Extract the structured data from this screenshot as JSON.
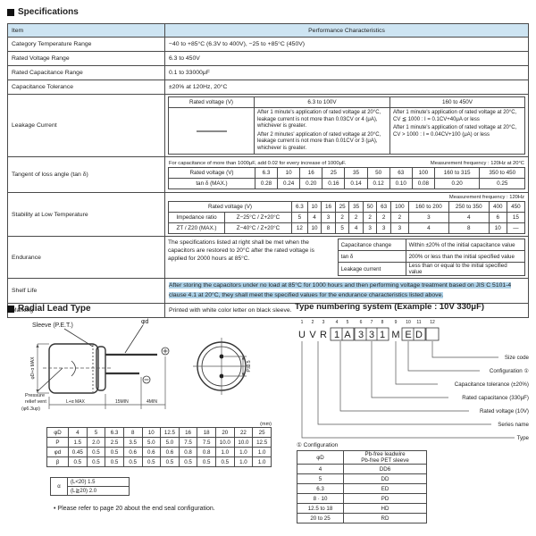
{
  "titles": {
    "specifications": "Specifications",
    "radial": "Radial Lead Type",
    "type_numbering": "Type numbering system (Example : 10V 330μF)"
  },
  "spec": {
    "header": {
      "item": "Item",
      "performance": "Performance Characteristics"
    },
    "rows": [
      {
        "label": "Category Temperature Range",
        "value": "−40 to +85°C (6.3V to 400V),  −25 to +85°C (450V)"
      },
      {
        "label": "Rated Voltage Range",
        "value": "6.3 to 450V"
      },
      {
        "label": "Rated Capacitance Range",
        "value": "0.1 to 33000μF"
      },
      {
        "label": "Capacitance Tolerance",
        "value": "±20% at 120Hz, 20°C"
      }
    ],
    "leakage": {
      "label": "Leakage Current",
      "col_header": "Rated voltage (V)",
      "range_low": "6.3 to 100V",
      "range_high": "160 to 450V",
      "low_p1": "After 1 minute's application of rated voltage at 20°C, leakage current is not more than 0.03CV or 4 (μA), whichever is greater.",
      "low_p2": "After 2 minutes' application of rated voltage at 20°C, leakage current is not more than 0.01CV or 3 (μA), whichever is greater.",
      "high_p1": "After 1 minute's application of rated voltage at 20°C, CV ≦ 1000 : I = 0.1CV+40μA or less",
      "high_p2": "After 1 minute's application of rated voltage at 20°C, CV > 1000 : I = 0.04CV+100 (μA) or less"
    },
    "tan_delta": {
      "label": "Tangent of loss angle (tan δ)",
      "note": "For capacitance of more than 1000μF, add 0.02 for every increase of 1000μF.",
      "freq_note": "Measurement frequency : 120Hz at 20°C",
      "voltage_label": "Rated voltage (V)",
      "voltages": [
        "6.3",
        "10",
        "16",
        "25",
        "35",
        "50",
        "63",
        "100",
        "160 to 315",
        "350 to 450"
      ],
      "max_label": "tan δ (MAX.)",
      "max_values": [
        "0.28",
        "0.24",
        "0.20",
        "0.16",
        "0.14",
        "0.12",
        "0.10",
        "0.08",
        "0.20",
        "0.25"
      ]
    },
    "stability": {
      "label": "Stability at Low Temperature",
      "freq_note": "Measurement frequency : 120Hz",
      "voltage_label": "Rated voltage (V)",
      "voltages": [
        "6.3",
        "10",
        "16",
        "25",
        "35",
        "50",
        "63",
        "100",
        "160 to 200",
        "250 to 350",
        "400",
        "450"
      ],
      "row_label_1": "Impedance ratio",
      "row_label_2": "ZT / Z20 (MAX.)",
      "z25_label": "Z−25°C / Z+20°C",
      "z25_values": [
        "5",
        "4",
        "3",
        "2",
        "2",
        "2",
        "2",
        "2",
        "3",
        "4",
        "6",
        "15"
      ],
      "z40_label": "Z−40°C / Z+20°C",
      "z40_values": [
        "12",
        "10",
        "8",
        "5",
        "4",
        "3",
        "3",
        "3",
        "4",
        "8",
        "10",
        "—"
      ]
    },
    "endurance": {
      "label": "Endurance",
      "text": "The specifications listed at right shall be met when the capacitors are restored to 20°C after the rated voltage is applied for 2000 hours at 85°C.",
      "criteria": [
        {
          "item": "Capacitance change",
          "value": "Within ±20% of the initial capacitance value"
        },
        {
          "item": "tan δ",
          "value": "200% or less than the initial specified value"
        },
        {
          "item": "Leakage current",
          "value": "Less than or equal to the initial specified value"
        }
      ]
    },
    "shelf_life": {
      "label": "Shelf Life",
      "text": "After storing the capacitors under no load at 85°C for 1000 hours and then performing voltage treatment based on JIS C 5101-4 clause 4.1 at 20°C, they shall meet the specified values for the endurance characteristics listed above."
    },
    "marking": {
      "label": "Marking",
      "value": "Printed with white color letter on black sleeve."
    }
  },
  "radial": {
    "drawing": {
      "sleeve_label": "Sleeve (P.E.T.)",
      "lead_dia_label": "φd",
      "vent_label_1": "Pressure",
      "vent_label_2": "relief vent",
      "vent_label_3": "(φ6.3up)",
      "body_dia_label": "φD+α MAX",
      "length_label": "L+α MAX",
      "lead_min_label": "15MIN",
      "tip_min_label": "4MIN",
      "pitch_label": "P±0.5"
    },
    "dim_table": {
      "unit": "(mm)",
      "rows": [
        {
          "label": "φD",
          "values": [
            "4",
            "5",
            "6.3",
            "8",
            "10",
            "12.5",
            "16",
            "18",
            "20",
            "22",
            "25"
          ]
        },
        {
          "label": "P",
          "values": [
            "1.5",
            "2.0",
            "2.5",
            "3.5",
            "5.0",
            "5.0",
            "7.5",
            "7.5",
            "10.0",
            "10.0",
            "12.5"
          ]
        },
        {
          "label": "φd",
          "values": [
            "0.45",
            "0.5",
            "0.5",
            "0.6",
            "0.6",
            "0.6",
            "0.8",
            "0.8",
            "1.0",
            "1.0",
            "1.0"
          ]
        },
        {
          "label": "β",
          "values": [
            "0.5",
            "0.5",
            "0.5",
            "0.5",
            "0.5",
            "0.5",
            "0.5",
            "0.5",
            "0.5",
            "1.0",
            "1.0"
          ]
        }
      ]
    },
    "alpha_table": {
      "label": "α",
      "row1": "(L<20) 1.5",
      "row2": "(L≧20) 2.0"
    },
    "note": "• Please refer to page 20 about the end seal configuration."
  },
  "type_numbering": {
    "positions": [
      "1",
      "2",
      "3",
      "4",
      "5",
      "6",
      "7",
      "8",
      "9",
      "10",
      "11",
      "12"
    ],
    "chars": [
      "U",
      "V",
      "R",
      "1",
      "A",
      "3",
      "3",
      "1",
      "M",
      "E",
      "D",
      ""
    ],
    "labels": [
      "Size code",
      "Configuration ①",
      "Capacitance tolerance (±20%)",
      "Rated capacitance (330μF)",
      "Rated voltage (10V)",
      "Series name",
      "Type"
    ]
  },
  "configuration": {
    "title": "① Configuration",
    "col1_header": "φD",
    "col2_header_1": "Pb-free leadwire",
    "col2_header_2": "Pb-free PET sleeve",
    "rows": [
      {
        "d": "4",
        "code": "DD6"
      },
      {
        "d": "5",
        "code": "DD"
      },
      {
        "d": "6.3",
        "code": "ED"
      },
      {
        "d": "8 · 10",
        "code": "PD"
      },
      {
        "d": "12.5 to 18",
        "code": "HD"
      },
      {
        "d": "20 to 25",
        "code": "RD"
      }
    ]
  }
}
